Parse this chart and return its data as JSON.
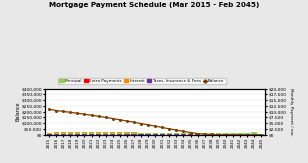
{
  "title": "Mortgage Payment Schedule (Mar 2015 - Feb 2045)",
  "years": [
    "2015",
    "2016",
    "2017",
    "2018",
    "2019",
    "2020",
    "2021",
    "2022",
    "2023",
    "2024",
    "2025",
    "2026",
    "2027",
    "2028",
    "2029",
    "2030",
    "2031",
    "2032",
    "2033",
    "2034",
    "2035",
    "2036",
    "2037",
    "2038",
    "2039",
    "2040",
    "2041",
    "2042",
    "2043",
    "2044",
    "2045"
  ],
  "principal": [
    3200,
    3600,
    3700,
    3800,
    3900,
    4000,
    4100,
    4300,
    4500,
    4800,
    5100,
    5500,
    5900,
    6300,
    6700,
    7200,
    7700,
    8300,
    9000,
    9700,
    10400,
    11200,
    12100,
    13000,
    14000,
    15000,
    16200,
    17200,
    18200,
    19200,
    4000
  ],
  "extra_payments": [
    0,
    0,
    0,
    0,
    0,
    0,
    0,
    0,
    0,
    0,
    0,
    0,
    0,
    0,
    0,
    0,
    0,
    0,
    0,
    0,
    0,
    0,
    0,
    0,
    0,
    0,
    0,
    0,
    0,
    0,
    500
  ],
  "interest": [
    7000,
    8200,
    8100,
    7900,
    7900,
    7800,
    7800,
    7700,
    7700,
    7500,
    7300,
    7100,
    6800,
    6500,
    6200,
    5800,
    5400,
    4900,
    4400,
    3800,
    3200,
    2500,
    1800,
    1100,
    800,
    500,
    300,
    200,
    100,
    50,
    200
  ],
  "taxes": [
    7000,
    8000,
    7800,
    7700,
    7700,
    7600,
    7600,
    7500,
    7500,
    7300,
    7100,
    6900,
    6600,
    6300,
    6000,
    5700,
    5300,
    4800,
    4300,
    3700,
    3100,
    2500,
    1900,
    1300,
    700,
    550,
    450,
    350,
    250,
    150,
    300
  ],
  "balance": [
    220000,
    210000,
    202000,
    194000,
    186000,
    178000,
    169000,
    160000,
    150000,
    140000,
    130000,
    119000,
    108000,
    97000,
    86000,
    75000,
    63000,
    51000,
    40000,
    29000,
    19000,
    10000,
    5000,
    2500,
    1200,
    600,
    250,
    100,
    40,
    10,
    0
  ],
  "left_ylim": [
    0,
    400000
  ],
  "left_yticks": [
    0,
    50000,
    100000,
    150000,
    200000,
    250000,
    300000,
    350000,
    400000
  ],
  "left_yticklabels": [
    "$0",
    "$50,000",
    "$100,000",
    "$150,000",
    "$200,000",
    "$250,000",
    "$300,000",
    "$350,000",
    "$400,000"
  ],
  "right_ylim": [
    0,
    20000
  ],
  "right_yticks": [
    0,
    2500,
    5000,
    7500,
    10000,
    12500,
    15000,
    17500,
    20000
  ],
  "right_yticklabels": [
    "$0",
    "$2,500",
    "$5,000",
    "$7,500",
    "$10,000",
    "$12,500",
    "$15,000",
    "$17,500",
    "$20,000"
  ],
  "color_principal": "#92D050",
  "color_extra": "#FF0000",
  "color_interest": "#FF8C00",
  "color_taxes": "#7030A0",
  "color_balance": "#7B3F00",
  "background_color": "#E8E8E8",
  "plot_bg": "#FFFFFF",
  "ylabel_left": "Balance",
  "ylabel_right": "Monthly Payment / mo.",
  "legend_labels": [
    "Principal",
    "Extra Payments",
    "Interest",
    "Taxes, Insurance & Fees",
    "Balance"
  ],
  "bar_width": 0.75
}
